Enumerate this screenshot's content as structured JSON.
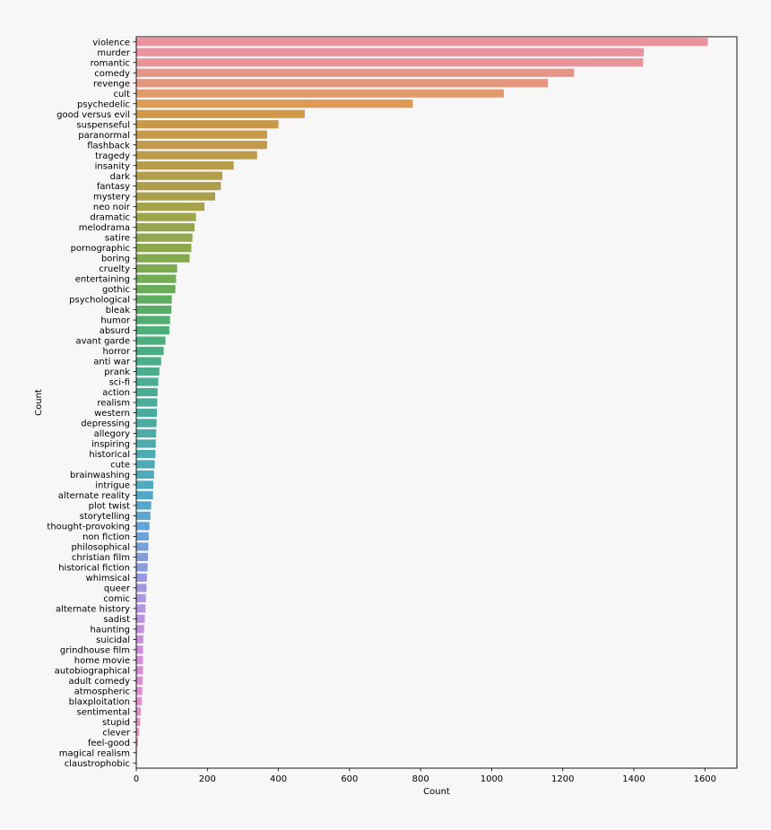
{
  "chart_data": {
    "type": "bar",
    "orientation": "horizontal",
    "xlabel": "Count",
    "ylabel": "Count",
    "xlim": [
      0,
      1690
    ],
    "xticks": [
      0,
      200,
      400,
      600,
      800,
      1000,
      1200,
      1400,
      1600
    ],
    "grid": false,
    "categories": [
      "violence",
      "murder",
      "romantic",
      "comedy",
      "revenge",
      "cult",
      "psychedelic",
      "good versus evil",
      "suspenseful",
      "paranormal",
      "flashback",
      "tragedy",
      "insanity",
      "dark",
      "fantasy",
      "mystery",
      "neo noir",
      "dramatic",
      "melodrama",
      "satire",
      "pornographic",
      "boring",
      "cruelty",
      "entertaining",
      "gothic",
      "psychological",
      "bleak",
      "humor",
      "absurd",
      "avant garde",
      "horror",
      "anti war",
      "prank",
      "sci-fi",
      "action",
      "realism",
      "western",
      "depressing",
      "allegory",
      "inspiring",
      "historical",
      "cute",
      "brainwashing",
      "intrigue",
      "alternate reality",
      "plot twist",
      "storytelling",
      "thought-provoking",
      "non fiction",
      "philosophical",
      "christian film",
      "historical fiction",
      "whimsical",
      "queer",
      "comic",
      "alternate history",
      "sadist",
      "haunting",
      "suicidal",
      "grindhouse film",
      "home movie",
      "autobiographical",
      "adult comedy",
      "atmospheric",
      "blaxploitation",
      "sentimental",
      "stupid",
      "clever",
      "feel-good",
      "magical realism",
      "claustrophobic"
    ],
    "values": [
      1608,
      1428,
      1426,
      1232,
      1158,
      1034,
      778,
      474,
      400,
      368,
      368,
      340,
      274,
      242,
      238,
      222,
      192,
      168,
      164,
      158,
      155,
      150,
      115,
      112,
      110,
      100,
      99,
      95,
      93,
      82,
      77,
      70,
      65,
      62,
      60,
      59,
      58,
      57,
      56,
      55,
      54,
      52,
      50,
      48,
      47,
      42,
      40,
      37,
      35,
      34,
      33,
      32,
      30,
      29,
      27,
      26,
      24,
      22,
      20,
      19,
      19,
      19,
      18,
      17,
      16,
      13,
      11,
      8,
      5,
      2,
      1
    ],
    "bar_colors": [
      "#e8939e",
      "#e8939d",
      "#e8949a",
      "#e59688",
      "#e4977e",
      "#e39b6e",
      "#de9a52",
      "#d09a48",
      "#c9994a",
      "#c69a48",
      "#c3994a",
      "#be9b48",
      "#b99c49",
      "#b49e4a",
      "#ae9e4a",
      "#aaa04a",
      "#a5a34a",
      "#9fa44a",
      "#99a54b",
      "#93a84c",
      "#8ca74c",
      "#83a84d",
      "#7aab4e",
      "#72ad53",
      "#69ad5a",
      "#5eae62",
      "#56ae69",
      "#50ae70",
      "#4dae77",
      "#4aaf7d",
      "#49ae84",
      "#4aae89",
      "#4aad8e",
      "#4aac92",
      "#4bac96",
      "#4bab9a",
      "#4cab9f",
      "#4caba3",
      "#4daba8",
      "#4dabad",
      "#4eabb1",
      "#4eaab6",
      "#4faabb",
      "#50aac0",
      "#52a9c6",
      "#56a7cc",
      "#5ba6d0",
      "#63a4d4",
      "#6da2d7",
      "#79a0da",
      "#849edc",
      "#8f9cde",
      "#999ae0",
      "#a298e1",
      "#ab96e2",
      "#b394e3",
      "#bb92e2",
      "#c290e1",
      "#c98fdf",
      "#cf8edd",
      "#d48ddb",
      "#d98dd7",
      "#dd8ed3",
      "#e08ecf",
      "#e28fca",
      "#e490c4",
      "#e591bf",
      "#e692b8",
      "#e793b2",
      "#e894ab",
      "#e895a5"
    ]
  }
}
